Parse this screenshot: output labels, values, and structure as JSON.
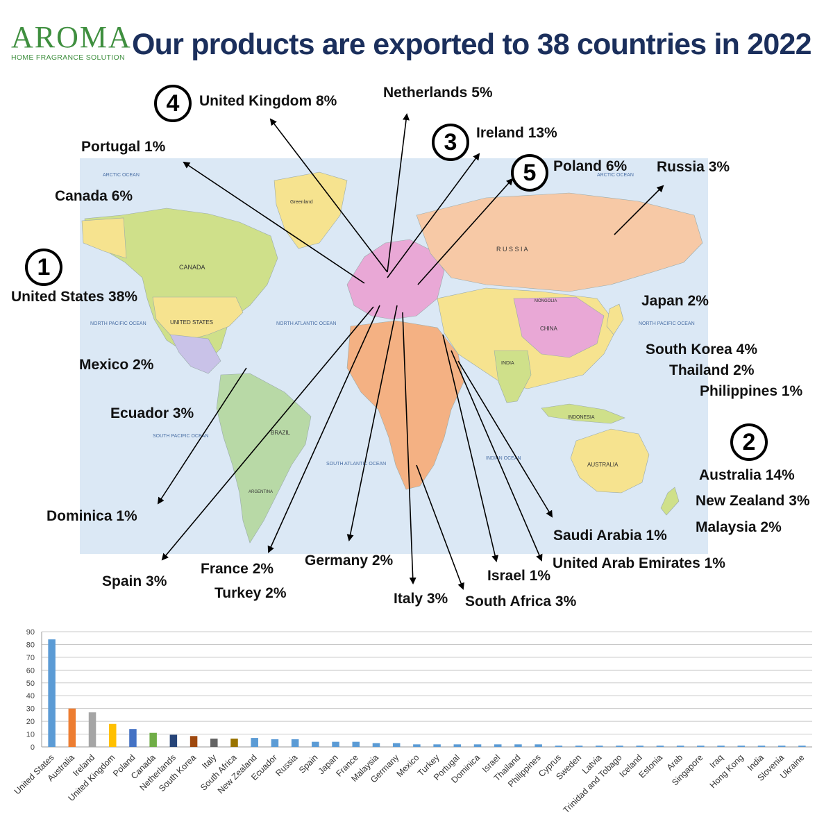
{
  "header": {
    "logo": "AROMA",
    "logo_sub": "HOME FRAGRANCE SOLUTION",
    "title": "Our products are exported to 38 countries in 2022"
  },
  "map": {
    "oceans": {
      "arctic_left": "ARCTIC OCEAN",
      "arctic_right": "ARCTIC OCEAN",
      "north_pacific_left": "NORTH PACIFIC OCEAN",
      "north_pacific_right": "NORTH PACIFIC OCEAN",
      "north_atlantic": "NORTH ATLANTIC OCEAN",
      "south_pacific": "SOUTH PACIFIC OCEAN",
      "south_atlantic": "SOUTH ATLANTIC OCEAN",
      "indian": "INDIAN OCEAN"
    },
    "regions": {
      "canada": "CANADA",
      "us": "UNITED STATES",
      "greenland": "Greenland",
      "russia": "R U S S I A",
      "china": "CHINA",
      "india": "INDIA",
      "brazil": "BRAZIL",
      "australia": "AUSTRALIA",
      "indonesia": "INDONESIA",
      "argentina": "ARGENTINA",
      "mongolia": "MONGOLIA"
    },
    "labels": {
      "us": "United States 38%",
      "australia": "Australia 14%",
      "ireland": "Ireland 13%",
      "uk": "United Kingdom 8%",
      "poland": "Poland 6%",
      "netherlands": "Netherlands 5%",
      "portugal": "Portugal 1%",
      "canada": "Canada 6%",
      "russia": "Russia 3%",
      "japan": "Japan 2%",
      "south_korea": "South Korea 4%",
      "thailand": "Thailand 2%",
      "philippines": "Philippines 1%",
      "new_zealand": "New Zealand 3%",
      "malaysia": "Malaysia 2%",
      "mexico": "Mexico 2%",
      "ecuador": "Ecuador 3%",
      "dominica": "Dominica 1%",
      "spain": "Spain 3%",
      "france": "France 2%",
      "turkey": "Turkey 2%",
      "germany": "Germany 2%",
      "italy": "Italy 3%",
      "south_africa": "South Africa 3%",
      "israel": "Israel 1%",
      "uae": "United Arab Emirates 1%",
      "saudi": "Saudi Arabia 1%"
    },
    "ranks": {
      "first": "1",
      "second": "2",
      "third": "3",
      "fourth": "4",
      "fifth": "5"
    }
  },
  "chart_data": {
    "type": "bar",
    "categories": [
      "United States",
      "Australia",
      "Ireland",
      "United Kingdom",
      "Poland",
      "Canada",
      "Netherlands",
      "South Korea",
      "Italy",
      "South Africa",
      "New Zealand",
      "Ecuador",
      "Russia",
      "Spain",
      "Japan",
      "France",
      "Malaysia",
      "Germany",
      "Mexico",
      "Turkey",
      "Portugal",
      "Dominica",
      "Israel",
      "Thailand",
      "Philippines",
      "Cyprus",
      "Sweden",
      "Latvia",
      "Trinidad and Tobago",
      "Iceland",
      "Estonia",
      "Arab",
      "Singapore",
      "Iraq",
      "Hong Kong",
      "India",
      "Slovenia",
      "Ukraine"
    ],
    "values": [
      84,
      30,
      27,
      18,
      14,
      11,
      9.5,
      8.5,
      6.5,
      6.5,
      7,
      6,
      6,
      4,
      4,
      4,
      3,
      3,
      2,
      2,
      2,
      2,
      2,
      2,
      2,
      1,
      1,
      1,
      1,
      1,
      1,
      1,
      1,
      1,
      1,
      1,
      1,
      1
    ],
    "colors": [
      "#5b9bd5",
      "#ed7d31",
      "#a5a5a5",
      "#ffc000",
      "#4472c4",
      "#70ad47",
      "#264478",
      "#9e480e",
      "#636363",
      "#997300",
      "#5b9bd5",
      "#5b9bd5",
      "#5b9bd5",
      "#5b9bd5",
      "#5b9bd5",
      "#5b9bd5",
      "#5b9bd5",
      "#5b9bd5",
      "#5b9bd5",
      "#5b9bd5",
      "#5b9bd5",
      "#5b9bd5",
      "#5b9bd5",
      "#5b9bd5",
      "#5b9bd5",
      "#5b9bd5",
      "#5b9bd5",
      "#5b9bd5",
      "#5b9bd5",
      "#5b9bd5",
      "#5b9bd5",
      "#5b9bd5",
      "#5b9bd5",
      "#5b9bd5",
      "#5b9bd5",
      "#5b9bd5",
      "#5b9bd5",
      "#5b9bd5"
    ],
    "yticks": [
      0,
      10,
      20,
      30,
      40,
      50,
      60,
      70,
      80,
      90
    ],
    "ylim": [
      0,
      90
    ],
    "grid": true,
    "title": "",
    "xlabel": "",
    "ylabel": ""
  },
  "colors": {
    "title": "#1b2f5c",
    "logo": "#3f8f3f",
    "ocean": "#dbe8f5",
    "land_colors": [
      "#f6e38f",
      "#cfe08a",
      "#f7c9a6",
      "#e9a8d6",
      "#b8d9a6",
      "#f4b183",
      "#c9c2e8"
    ]
  }
}
